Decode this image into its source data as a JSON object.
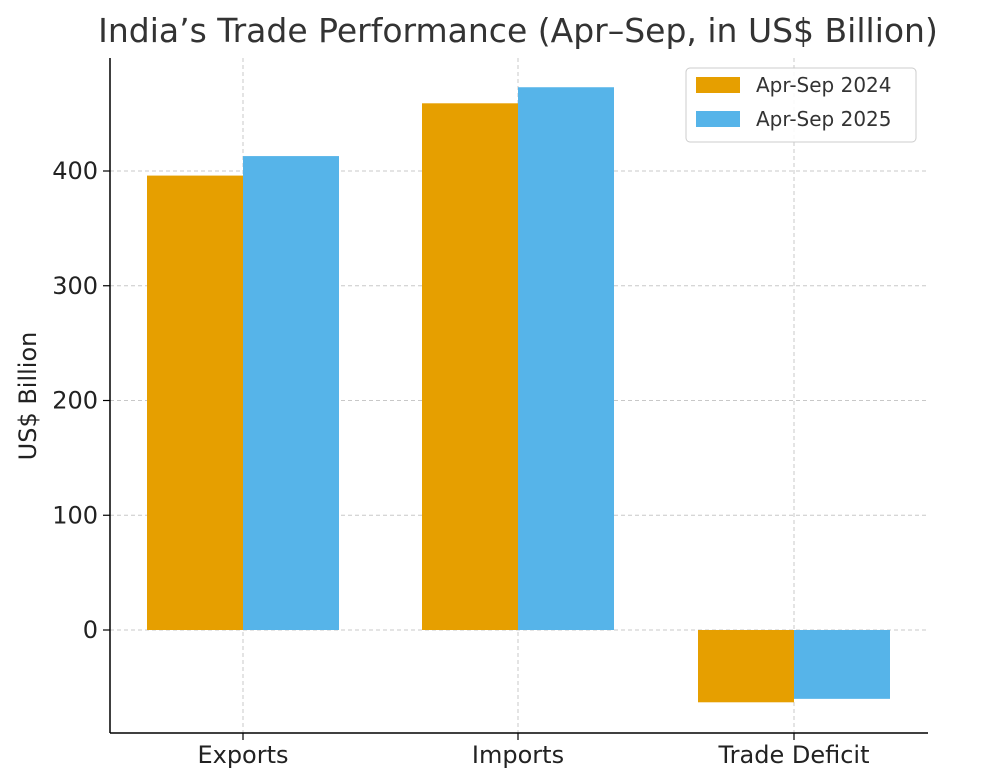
{
  "chart_data": {
    "type": "bar",
    "title": "India’s Trade Performance (Apr–Sep, in US$ Billion)",
    "xlabel": "",
    "ylabel": "US$ Billion",
    "categories": [
      "Exports",
      "Imports",
      "Trade Deficit"
    ],
    "series": [
      {
        "name": "Apr-Sep 2024",
        "color": "#E69F00",
        "values": [
          396,
          459,
          -63
        ]
      },
      {
        "name": "Apr-Sep 2025",
        "color": "#56B4E9",
        "values": [
          413,
          473,
          -60
        ]
      }
    ],
    "ylim": [
      -88,
      500
    ],
    "yticks": [
      0,
      100,
      200,
      300,
      400
    ],
    "grid": true,
    "legend_position": "top-right"
  }
}
